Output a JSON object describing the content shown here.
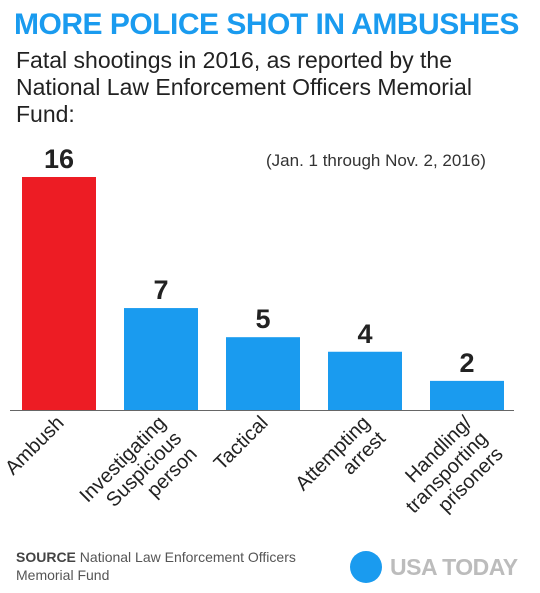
{
  "title": "MORE POLICE SHOT IN AMBUSHES",
  "subtitle": "Fatal shootings in 2016, as reported by the National Law Enforcement Officers Memorial Fund:",
  "date_range": "(Jan. 1 through Nov. 2, 2016)",
  "source": {
    "label": "SOURCE",
    "text": "National Law Enforcement Officers Memorial Fund"
  },
  "logo": {
    "text": "USA TODAY",
    "icon": "usa-today-circle-icon"
  },
  "colors": {
    "highlight": "#ed1c24",
    "bar": "#1a9bef",
    "title": "#1a9bef"
  },
  "chart_data": {
    "type": "bar",
    "categories": [
      "Ambush",
      "Investigating Suspicious person",
      "Tactical",
      "Attempting arrest",
      "Handling/ transporting prisoners"
    ],
    "category_lines": [
      [
        "Ambush"
      ],
      [
        "Investigating",
        "Suspicious",
        "person"
      ],
      [
        "Tactical"
      ],
      [
        "Attempting",
        "arrest"
      ],
      [
        "Handling/",
        "transporting",
        "prisoners"
      ]
    ],
    "values": [
      16,
      7,
      5,
      4,
      2
    ],
    "highlight_index": 0,
    "ylim": [
      0,
      16
    ],
    "grid": false,
    "xlabel": "",
    "ylabel": ""
  }
}
